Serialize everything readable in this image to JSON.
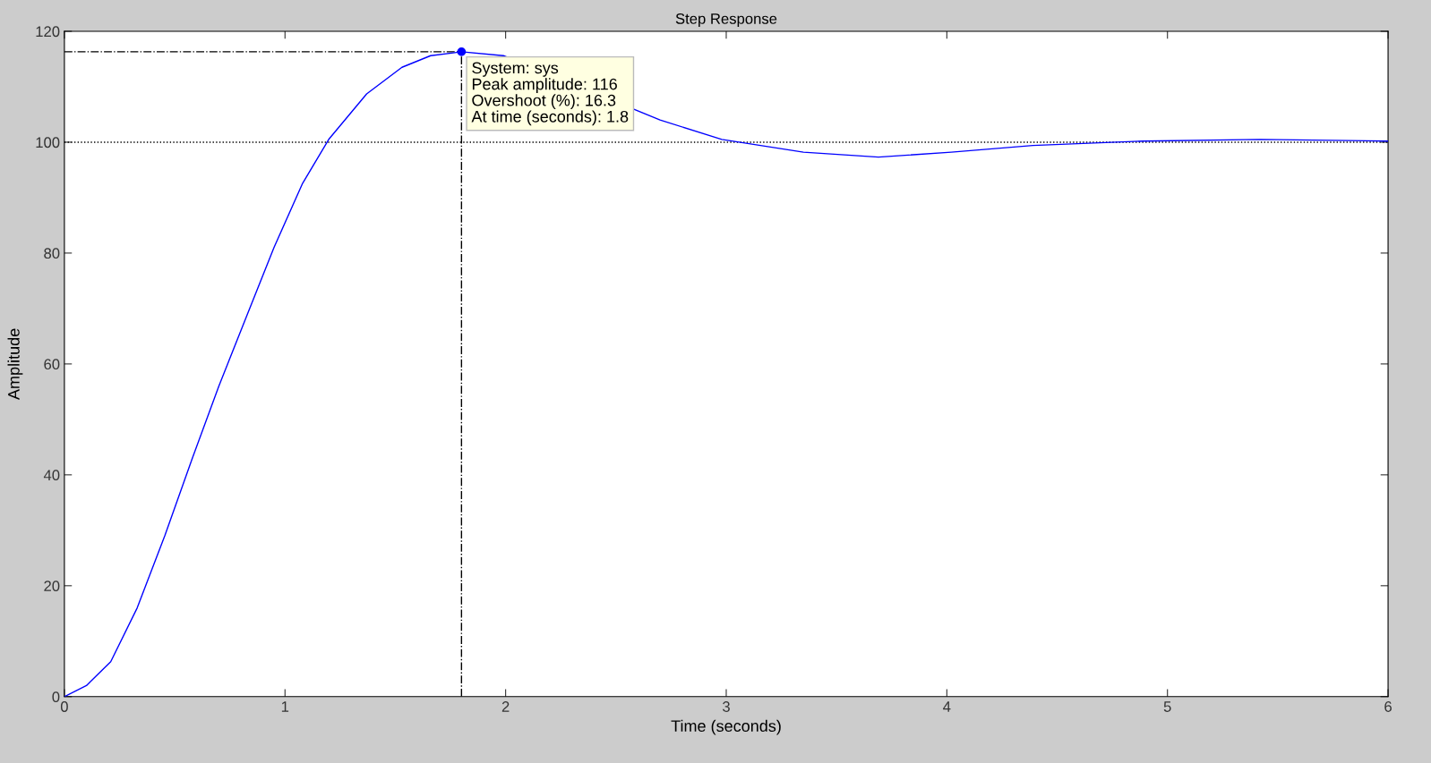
{
  "chart_data": {
    "type": "line",
    "title": "Step Response",
    "xlabel": "Time (seconds)",
    "ylabel": "Amplitude",
    "x": [
      0,
      0.1,
      0.21,
      0.33,
      0.455,
      0.58,
      0.7,
      0.83,
      0.95,
      1.08,
      1.2,
      1.37,
      1.53,
      1.66,
      1.8,
      1.99,
      2.7,
      2.98,
      3.35,
      3.69,
      4.02,
      4.39,
      4.89,
      5.42,
      6
    ],
    "series": [
      {
        "color": "#0000ff",
        "values": [
          0,
          2,
          6.3,
          16,
          29,
          43,
          56,
          69,
          81,
          92.6,
          100.6,
          108.7,
          113.5,
          115.6,
          116.3,
          115.6,
          104,
          100.5,
          98.2,
          97.3,
          98.2,
          99.4,
          100.2,
          100.5,
          100.2
        ]
      }
    ],
    "xlim": [
      0,
      6
    ],
    "ylim": [
      0,
      120
    ],
    "xticks": [
      0,
      1,
      2,
      3,
      4,
      5,
      6
    ],
    "yticks": [
      0,
      20,
      40,
      60,
      80,
      100,
      120
    ],
    "grid": false,
    "marker": "none",
    "line_style": "solid",
    "ref_lines": [
      {
        "axis": "y",
        "value": 100,
        "line_style": "dotted",
        "color": "#000000"
      },
      {
        "axis": "x",
        "value": 1.8,
        "line_style": "dashdot",
        "color": "#000000"
      },
      {
        "axis": "y",
        "value": 116.3,
        "line_style": "dashdot",
        "color": "#000000"
      }
    ],
    "annotations": [
      {
        "text": "System: sys\nPeak amplitude: 116\nOvershoot (%): 16.3\nAt time (seconds): 1.8",
        "x": 1.8,
        "y": 116.3
      }
    ]
  }
}
